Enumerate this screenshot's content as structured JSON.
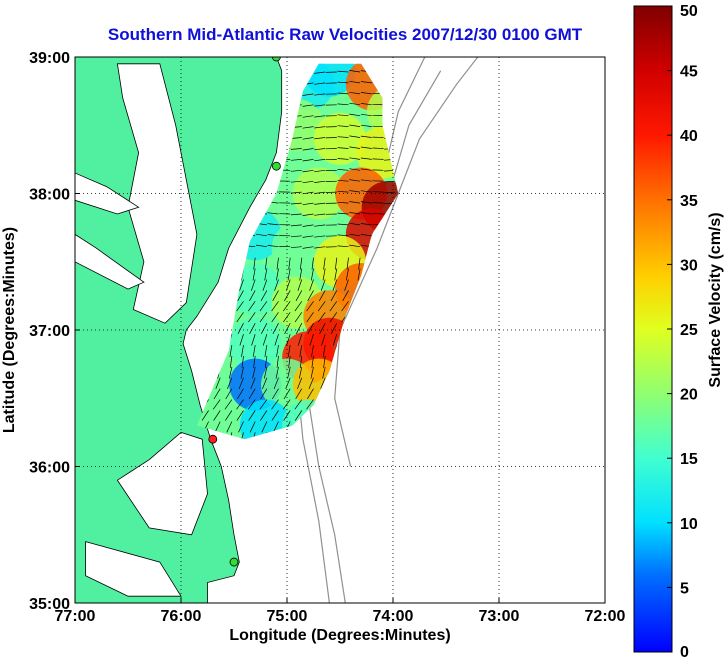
{
  "chart_data": {
    "type": "heatmap",
    "title": "Southern Mid-Atlantic Raw Velocities 2007/12/30 0100 GMT",
    "xlabel": "Longitude (Degrees:Minutes)",
    "ylabel": "Latitude (Degrees:Minutes)",
    "x_ticks": [
      {
        "value": -77,
        "label": "77:00"
      },
      {
        "value": -76,
        "label": "76:00"
      },
      {
        "value": -75,
        "label": "75:00"
      },
      {
        "value": -74,
        "label": "74:00"
      },
      {
        "value": -73,
        "label": "73:00"
      },
      {
        "value": -72,
        "label": "72:00"
      }
    ],
    "y_ticks": [
      {
        "value": 35,
        "label": "35:00"
      },
      {
        "value": 36,
        "label": "36:00"
      },
      {
        "value": 37,
        "label": "37:00"
      },
      {
        "value": 38,
        "label": "38:00"
      },
      {
        "value": 39,
        "label": "39:00"
      }
    ],
    "xlim": [
      -77,
      -72
    ],
    "ylim": [
      35,
      39
    ],
    "grid": true,
    "colorbar": {
      "label": "Surface Velocity (cm/s)",
      "min": 0,
      "max": 50,
      "ticks": [
        {
          "value": 0,
          "label": "0"
        },
        {
          "value": 5,
          "label": "5"
        },
        {
          "value": 10,
          "label": "10"
        },
        {
          "value": 15,
          "label": "15"
        },
        {
          "value": 20,
          "label": "20"
        },
        {
          "value": 25,
          "label": "25"
        },
        {
          "value": 30,
          "label": "30"
        },
        {
          "value": 35,
          "label": "35"
        },
        {
          "value": 40,
          "label": "40"
        },
        {
          "value": 45,
          "label": "45"
        },
        {
          "value": 50,
          "label": "50"
        }
      ]
    },
    "colors": {
      "land": "#50f0a0",
      "ocean": "#ffffff",
      "bathymetry": "#909090",
      "station_active": "#30e030",
      "station_inactive": "#ff2020",
      "arrows": "#000000"
    },
    "stations": [
      {
        "lon": -75.1,
        "lat": 39.0,
        "status": "active"
      },
      {
        "lon": -75.1,
        "lat": 38.2,
        "status": "active"
      },
      {
        "lon": -75.7,
        "lat": 36.2,
        "status": "inactive"
      },
      {
        "lon": -75.5,
        "lat": 35.3,
        "status": "active"
      }
    ],
    "speed_field": [
      {
        "lon": -74.8,
        "lat": 38.8,
        "speed": 12
      },
      {
        "lon": -74.6,
        "lat": 38.9,
        "speed": 10
      },
      {
        "lon": -74.2,
        "lat": 38.8,
        "speed": 36
      },
      {
        "lon": -74.0,
        "lat": 38.6,
        "speed": 22
      },
      {
        "lon": -74.9,
        "lat": 38.5,
        "speed": 20
      },
      {
        "lon": -74.5,
        "lat": 38.4,
        "speed": 24
      },
      {
        "lon": -74.1,
        "lat": 38.3,
        "speed": 26
      },
      {
        "lon": -75.0,
        "lat": 38.1,
        "speed": 18
      },
      {
        "lon": -74.7,
        "lat": 38.0,
        "speed": 22
      },
      {
        "lon": -74.3,
        "lat": 38.0,
        "speed": 36
      },
      {
        "lon": -74.05,
        "lat": 37.9,
        "speed": 48
      },
      {
        "lon": -74.2,
        "lat": 37.7,
        "speed": 44
      },
      {
        "lon": -75.3,
        "lat": 37.7,
        "speed": 12
      },
      {
        "lon": -74.9,
        "lat": 37.6,
        "speed": 18
      },
      {
        "lon": -74.5,
        "lat": 37.5,
        "speed": 26
      },
      {
        "lon": -74.3,
        "lat": 37.3,
        "speed": 36
      },
      {
        "lon": -75.3,
        "lat": 37.3,
        "speed": 16
      },
      {
        "lon": -74.9,
        "lat": 37.2,
        "speed": 22
      },
      {
        "lon": -74.6,
        "lat": 37.1,
        "speed": 34
      },
      {
        "lon": -74.6,
        "lat": 36.9,
        "speed": 42
      },
      {
        "lon": -74.8,
        "lat": 36.8,
        "speed": 40
      },
      {
        "lon": -75.3,
        "lat": 36.9,
        "speed": 16
      },
      {
        "lon": -75.3,
        "lat": 36.6,
        "speed": 6
      },
      {
        "lon": -75.0,
        "lat": 36.6,
        "speed": 18
      },
      {
        "lon": -74.7,
        "lat": 36.6,
        "speed": 30
      },
      {
        "lon": -75.2,
        "lat": 36.3,
        "speed": 10
      },
      {
        "lon": -74.8,
        "lat": 36.3,
        "speed": 16
      }
    ]
  }
}
